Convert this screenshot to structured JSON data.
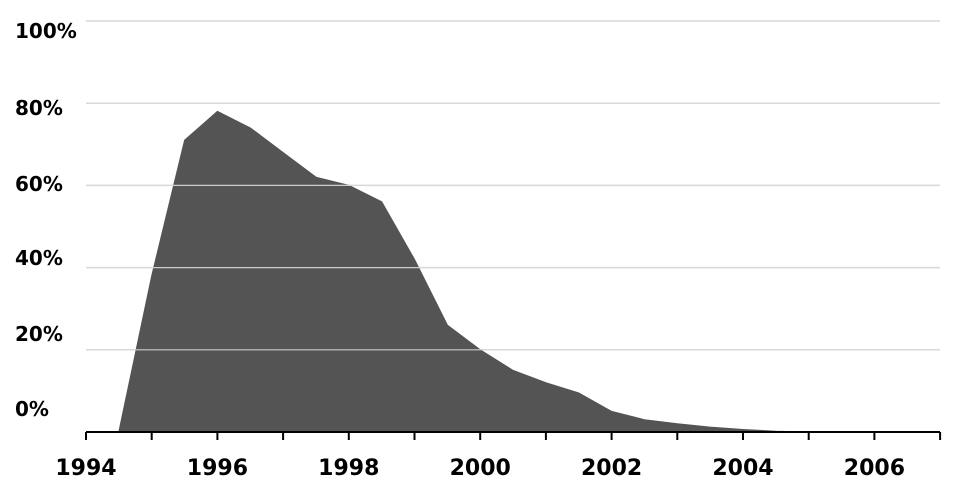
{
  "chart_data": {
    "type": "area",
    "title": "",
    "xlabel": "",
    "ylabel": "",
    "xlim": [
      1994,
      2007
    ],
    "ylim": [
      0,
      100
    ],
    "grid": true,
    "legend": "none",
    "fill_color": "#545454",
    "grid_color": "#d9d9d9",
    "axis_color": "#000000",
    "y_ticks": [
      {
        "value": 100,
        "label": "100%"
      },
      {
        "value": 80,
        "label": "80%"
      },
      {
        "value": 60,
        "label": "60%"
      },
      {
        "value": 40,
        "label": "40%"
      },
      {
        "value": 20,
        "label": "20%"
      },
      {
        "value": 0,
        "label": "0%"
      }
    ],
    "x_ticks": [
      {
        "value": 1994,
        "label": "1994"
      },
      {
        "value": 1996,
        "label": "1996"
      },
      {
        "value": 1998,
        "label": "1998"
      },
      {
        "value": 2000,
        "label": "2000"
      },
      {
        "value": 2002,
        "label": "2002"
      },
      {
        "value": 2004,
        "label": "2004"
      },
      {
        "value": 2006,
        "label": "2006"
      }
    ],
    "x_minor_ticks": [
      1995,
      1997,
      1999,
      2001,
      2003,
      2005,
      2007
    ],
    "series": [
      {
        "x": [
          1994.5,
          1995.0,
          1995.5,
          1996.0,
          1996.5,
          1997.0,
          1997.5,
          1998.0,
          1998.5,
          1999.0,
          1999.5,
          2000.0,
          2000.5,
          2001.0,
          2001.5,
          2002.0,
          2002.5,
          2003.0,
          2003.5,
          2004.0,
          2004.5,
          2005.0
        ],
        "values": [
          0,
          38,
          71,
          78,
          74,
          68,
          62,
          60,
          56,
          42,
          26,
          20,
          15,
          12,
          9.5,
          5,
          3,
          2,
          1.2,
          0.6,
          0.2,
          0
        ]
      }
    ]
  }
}
